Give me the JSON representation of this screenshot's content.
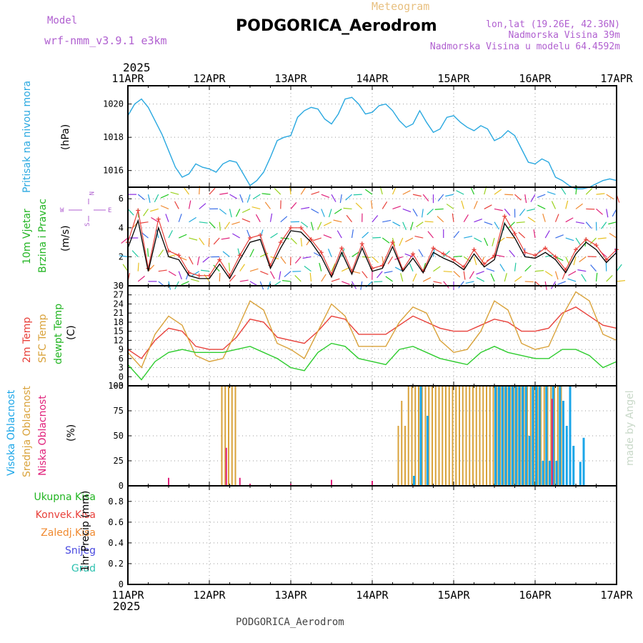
{
  "header": {
    "model_label": "Model",
    "model_name": "wrf-nmm_v3.9.1 e3km",
    "meteogram_label": "Meteogram",
    "station": "PODGORICA_Aerodrom",
    "coords": "lon,lat (19.26E, 42.36N)",
    "altitude": "Nadmorska Visina 39m",
    "model_altitude": "Nadmorska Visina u modelu 64.4592m",
    "year": "2025",
    "footer_station": "PODGORICA_Aerodrom",
    "credit": "made by Angel"
  },
  "axis": {
    "dates": [
      "11APR",
      "12APR",
      "13APR",
      "14APR",
      "15APR",
      "16APR",
      "17APR"
    ]
  },
  "colors": {
    "pressure": "#29a8e0",
    "wind_label": "#22b522",
    "temp2m": "#e8403a",
    "sfc": "#d9a23a",
    "dewpt": "#2ecc2e",
    "high_cloud": "#1ba6e8",
    "mid_cloud": "#d9a23a",
    "low_cloud": "#e0207a",
    "total_precip": "#22b522",
    "conv_precip": "#e8403a",
    "frozen_precip": "#f08a30",
    "snow": "#4a4ae0",
    "hail": "#2ec2b0"
  },
  "panels": {
    "pressure": {
      "label": "Pritisak na nivou mora",
      "unit": "(hPa)",
      "ticks": [
        "1016",
        "1018",
        "1020"
      ]
    },
    "wind": {
      "label1": "10m Vjetar",
      "label2": "Brzina i Pravac",
      "unit": "(m/s)",
      "ticks": [
        "0",
        "2",
        "4",
        "6"
      ],
      "compass": {
        "n": "N",
        "s": "S",
        "e": "E",
        "w": "W"
      }
    },
    "temp": {
      "label1": "2m Temp",
      "label2": "SFC Temp",
      "label3": "dewpt Temp",
      "unit": "(C)",
      "ticks": [
        "−3",
        "0",
        "3",
        "6",
        "9",
        "12",
        "15",
        "18",
        "21",
        "24",
        "27",
        "30"
      ]
    },
    "cloud": {
      "label1": "Visoka Oblacnost",
      "label2": "Srednja Oblacnost",
      "label3": "Niska Oblacnost",
      "unit": "(%)",
      "ticks": [
        "0",
        "25",
        "50",
        "75",
        "100"
      ]
    },
    "precip": {
      "label1": "Ukupna Kisa",
      "label2": "Konvek.Kisa",
      "label3": "Zaledj.Kisa",
      "label4": "Snijeg",
      "label5": "Grad",
      "unit": "1hr Precip (mm)",
      "ticks": [
        "0",
        "0.2",
        "0.4",
        "0.6",
        "0.8"
      ]
    }
  },
  "chart_data": [
    {
      "type": "line",
      "title": "Pritisak na nivou mora",
      "ylabel": "(hPa)",
      "ylim": [
        1015,
        1021.1
      ],
      "x_hours": [
        0,
        2,
        4,
        6,
        8,
        10,
        12,
        14,
        16,
        18,
        20,
        22,
        24,
        26,
        28,
        30,
        32,
        34,
        36,
        38,
        40,
        42,
        44,
        46,
        48,
        50,
        52,
        54,
        56,
        58,
        60,
        62,
        64,
        66,
        68,
        70,
        72,
        74,
        76,
        78,
        80,
        82,
        84,
        86,
        88,
        90,
        92,
        94,
        96,
        98,
        100,
        102,
        104,
        106,
        108,
        110,
        112,
        114,
        116,
        118,
        120,
        122,
        124,
        126,
        128,
        130,
        132,
        134,
        136,
        138,
        140,
        142,
        144
      ],
      "values": [
        1019.3,
        1020.0,
        1020.3,
        1019.8,
        1019.0,
        1018.2,
        1017.2,
        1016.2,
        1015.6,
        1015.8,
        1016.4,
        1016.2,
        1016.1,
        1015.9,
        1016.4,
        1016.6,
        1016.5,
        1015.8,
        1015.1,
        1015.4,
        1015.9,
        1016.8,
        1017.8,
        1018.0,
        1018.1,
        1019.2,
        1019.6,
        1019.8,
        1019.7,
        1019.1,
        1018.8,
        1019.4,
        1020.3,
        1020.4,
        1020.0,
        1019.4,
        1019.5,
        1019.9,
        1020.0,
        1019.6,
        1019.0,
        1018.6,
        1018.8,
        1019.6,
        1018.9,
        1018.3,
        1018.5,
        1019.2,
        1019.3,
        1018.9,
        1018.6,
        1018.4,
        1018.7,
        1018.5,
        1017.8,
        1018.0,
        1018.4,
        1018.1,
        1017.3,
        1016.5,
        1016.4,
        1016.7,
        1016.5,
        1015.6,
        1015.4,
        1015.1,
        1014.9,
        1014.9,
        1015.0,
        1015.2,
        1015.4,
        1015.5,
        1015.4
      ]
    },
    {
      "type": "line",
      "title": "10m Vjetar Brzina i Pravac",
      "ylabel": "(m/s)",
      "ylim": [
        0,
        6.8
      ],
      "x_hours": [
        0,
        3,
        6,
        9,
        12,
        15,
        18,
        21,
        24,
        27,
        30,
        33,
        36,
        39,
        42,
        45,
        48,
        51,
        54,
        57,
        60,
        63,
        66,
        69,
        72,
        75,
        78,
        81,
        84,
        87,
        90,
        93,
        96,
        99,
        102,
        105,
        108,
        111,
        114,
        117,
        120,
        123,
        126,
        129,
        132,
        135,
        138,
        141,
        144
      ],
      "series": [
        {
          "name": "wind speed",
          "color": "#000000",
          "values": [
            2.6,
            4.5,
            1.0,
            4.0,
            2.0,
            1.8,
            0.7,
            0.5,
            0.5,
            1.5,
            0.5,
            1.8,
            3.0,
            3.2,
            1.2,
            2.6,
            3.8,
            3.7,
            3.0,
            2.0,
            0.6,
            2.3,
            0.8,
            2.6,
            1.0,
            1.2,
            2.7,
            1.0,
            1.9,
            0.9,
            2.3,
            1.9,
            1.6,
            1.1,
            2.2,
            1.3,
            1.8,
            4.3,
            3.3,
            2.0,
            1.9,
            2.3,
            1.8,
            0.9,
            2.2,
            3.0,
            2.5,
            1.6,
            2.3
          ]
        },
        {
          "name": "wind gust",
          "color": "#e8403a",
          "values": [
            3.0,
            5.2,
            1.2,
            4.6,
            2.4,
            2.1,
            0.9,
            0.7,
            0.7,
            1.8,
            0.7,
            2.1,
            3.3,
            3.5,
            1.4,
            3.0,
            4.0,
            4.0,
            3.2,
            2.3,
            0.8,
            2.6,
            1.0,
            2.9,
            1.2,
            1.4,
            3.0,
            1.1,
            2.2,
            1.0,
            2.6,
            2.2,
            1.8,
            1.3,
            2.5,
            1.5,
            2.1,
            4.8,
            3.6,
            2.3,
            2.1,
            2.6,
            2.0,
            1.1,
            2.5,
            3.2,
            2.8,
            1.8,
            2.5
          ]
        }
      ]
    },
    {
      "type": "line",
      "title": "Temperature",
      "ylabel": "(C)",
      "ylim": [
        -3,
        30
      ],
      "x_hours": [
        0,
        4,
        8,
        12,
        16,
        20,
        24,
        28,
        32,
        36,
        40,
        44,
        48,
        52,
        56,
        60,
        64,
        68,
        72,
        76,
        80,
        84,
        88,
        92,
        96,
        100,
        104,
        108,
        112,
        116,
        120,
        124,
        128,
        132,
        136,
        140,
        144
      ],
      "series": [
        {
          "name": "2m Temp",
          "color": "#e8403a",
          "values": [
            9,
            6,
            12,
            16,
            15,
            10,
            9,
            9,
            13,
            19,
            18,
            13,
            12,
            11,
            15,
            20,
            19,
            14,
            14,
            14,
            17,
            20,
            18,
            16,
            15,
            15,
            17,
            19,
            18,
            15,
            15,
            16,
            21,
            23,
            20,
            17,
            16
          ]
        },
        {
          "name": "SFC Temp",
          "color": "#d9a23a",
          "values": [
            8,
            3,
            14,
            20,
            17,
            7,
            5,
            6,
            15,
            25,
            22,
            11,
            9,
            6,
            15,
            24,
            20,
            10,
            10,
            10,
            18,
            23,
            21,
            12,
            8,
            9,
            15,
            25,
            22,
            11,
            9,
            10,
            20,
            28,
            25,
            14,
            12
          ]
        },
        {
          "name": "dewpt Temp",
          "color": "#2ecc2e",
          "values": [
            4,
            -1,
            5,
            8,
            9,
            8,
            8,
            8,
            9,
            10,
            8,
            6,
            3,
            2,
            8,
            11,
            10,
            6,
            5,
            4,
            9,
            10,
            8,
            6,
            5,
            4,
            8,
            10,
            8,
            7,
            6,
            6,
            9,
            9,
            7,
            3,
            5
          ]
        }
      ]
    },
    {
      "type": "bar",
      "title": "Oblacnost",
      "ylabel": "(%)",
      "ylim": [
        0,
        100
      ],
      "series": [
        {
          "name": "Srednja Oblacnost",
          "color": "#d9a23a",
          "x_hours": [
            28,
            29,
            30,
            31,
            32,
            80,
            81,
            82,
            83,
            84,
            85,
            86,
            87,
            88,
            89,
            90,
            91,
            92,
            93,
            94,
            95,
            96,
            97,
            98,
            99,
            100,
            101,
            102,
            103,
            104,
            105,
            106,
            107,
            108,
            109,
            110,
            111,
            112,
            113,
            114,
            115,
            116,
            117,
            118,
            119,
            120,
            121,
            122,
            123,
            124,
            125,
            126,
            127,
            128
          ],
          "values": [
            100,
            100,
            100,
            100,
            100,
            60,
            85,
            60,
            100,
            100,
            100,
            100,
            100,
            100,
            100,
            100,
            100,
            100,
            100,
            100,
            100,
            100,
            100,
            100,
            100,
            100,
            100,
            100,
            100,
            100,
            100,
            100,
            100,
            100,
            100,
            100,
            100,
            100,
            100,
            100,
            100,
            100,
            100,
            100,
            100,
            100,
            100,
            100,
            100,
            100,
            100,
            100,
            100,
            100
          ]
        },
        {
          "name": "Visoka Oblacnost",
          "color": "#1ba6e8",
          "x_hours": [
            84,
            86,
            88,
            108,
            109,
            110,
            111,
            112,
            113,
            114,
            115,
            116,
            117,
            118,
            119,
            120,
            121,
            122,
            123,
            124,
            125,
            126,
            127,
            128,
            129,
            130,
            131,
            132,
            133,
            134
          ],
          "values": [
            10,
            100,
            70,
            100,
            100,
            100,
            100,
            100,
            100,
            100,
            100,
            100,
            100,
            50,
            100,
            100,
            100,
            25,
            100,
            25,
            100,
            25,
            100,
            85,
            60,
            100,
            40,
            0,
            24,
            48
          ]
        },
        {
          "name": "Niska Oblacnost",
          "color": "#e0207a",
          "x_hours": [
            12,
            29,
            33,
            36,
            48,
            60,
            72,
            125
          ],
          "values": [
            8,
            38,
            8,
            2,
            2,
            6,
            5,
            87
          ]
        }
      ]
    },
    {
      "type": "bar",
      "title": "1hr Precip",
      "ylabel": "1hr Precip (mm)",
      "ylim": [
        0,
        0.95
      ],
      "x_hours": [
        0,
        24,
        48,
        72,
        96,
        120,
        144
      ],
      "values": [
        0,
        0,
        0,
        0,
        0,
        0,
        0
      ]
    }
  ]
}
